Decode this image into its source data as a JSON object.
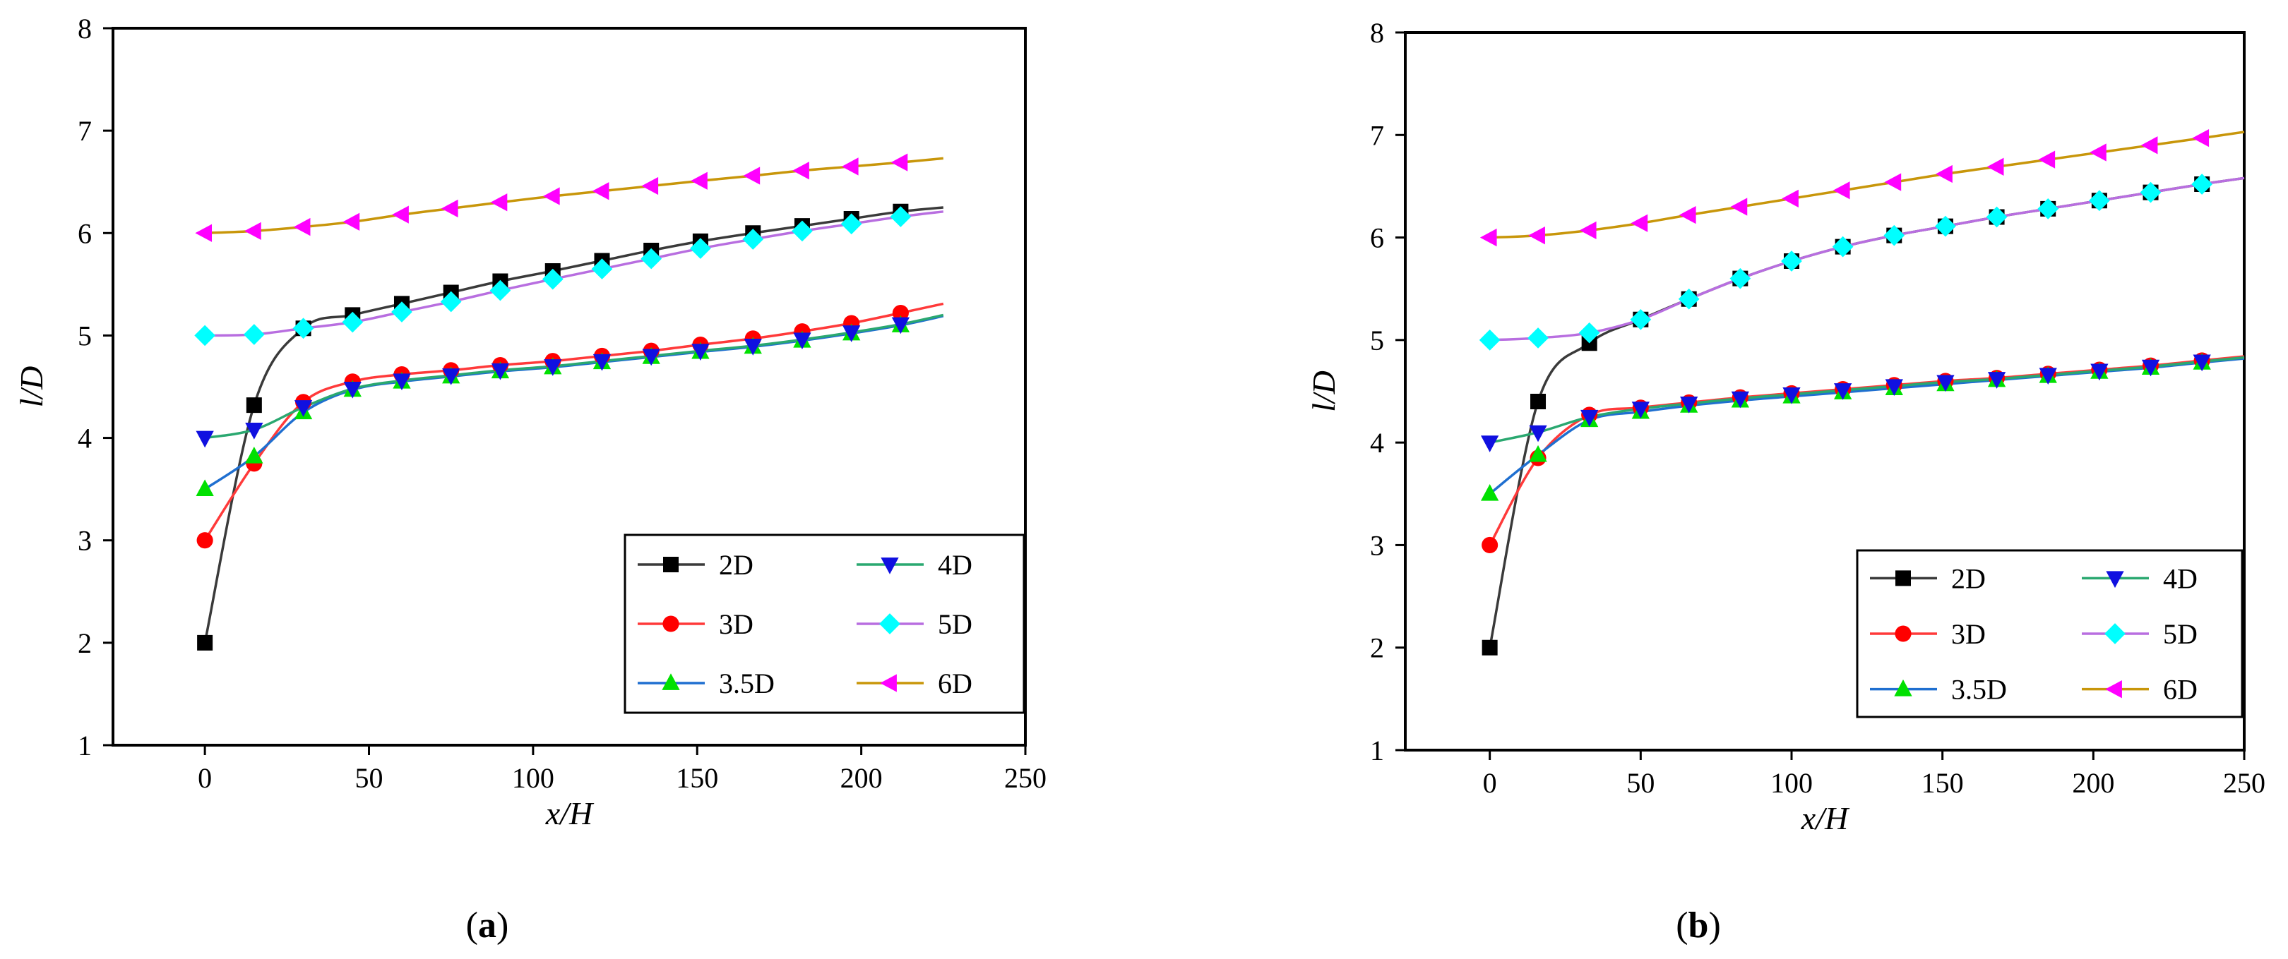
{
  "chart_data": [
    {
      "type": "line",
      "panel_label": "a",
      "xlabel": "x/H",
      "ylabel": "l/D",
      "xlim": [
        -28,
        250
      ],
      "ylim": [
        1,
        8
      ],
      "xticks": [
        0,
        50,
        100,
        150,
        200,
        250
      ],
      "yticks": [
        1,
        2,
        3,
        4,
        5,
        6,
        7,
        8
      ],
      "legend_position": "bottom-right",
      "series": [
        {
          "name": "2D",
          "color": "#000000",
          "line_color": "#3a3a3a",
          "marker": "square",
          "x": [
            0,
            15,
            30,
            45,
            60,
            75,
            90,
            106,
            121,
            136,
            151,
            167,
            182,
            197,
            212
          ],
          "y": [
            2.0,
            4.32,
            5.07,
            5.2,
            5.31,
            5.42,
            5.53,
            5.63,
            5.73,
            5.83,
            5.92,
            6.0,
            6.07,
            6.14,
            6.21
          ],
          "end": [
            225,
            6.25
          ]
        },
        {
          "name": "3D",
          "color": "#ff0000",
          "line_color": "#ff3a3a",
          "marker": "circle",
          "x": [
            0,
            15,
            30,
            45,
            60,
            75,
            90,
            106,
            121,
            136,
            151,
            167,
            182,
            197,
            212
          ],
          "y": [
            3.0,
            3.75,
            4.35,
            4.55,
            4.62,
            4.66,
            4.71,
            4.75,
            4.8,
            4.85,
            4.91,
            4.97,
            5.04,
            5.12,
            5.22
          ],
          "end": [
            225,
            5.31
          ]
        },
        {
          "name": "3.5D",
          "color": "#00e000",
          "line_color": "#1f6fd0",
          "marker": "triangle-up",
          "x": [
            0,
            15,
            30,
            45,
            60,
            75,
            90,
            106,
            121,
            136,
            151,
            167,
            182,
            197,
            212
          ],
          "y": [
            3.5,
            3.82,
            4.25,
            4.47,
            4.55,
            4.6,
            4.65,
            4.69,
            4.74,
            4.79,
            4.84,
            4.89,
            4.95,
            5.02,
            5.1
          ],
          "end": [
            225,
            5.19
          ]
        },
        {
          "name": "4D",
          "color": "#1010e0",
          "line_color": "#2aa870",
          "marker": "triangle-down",
          "x": [
            0,
            15,
            30,
            45,
            60,
            75,
            90,
            106,
            121,
            136,
            151,
            167,
            182,
            197,
            212
          ],
          "y": [
            4.0,
            4.08,
            4.3,
            4.48,
            4.56,
            4.61,
            4.66,
            4.7,
            4.75,
            4.8,
            4.85,
            4.9,
            4.96,
            5.03,
            5.11
          ],
          "end": [
            225,
            5.2
          ]
        },
        {
          "name": "5D",
          "color": "#00ffff",
          "line_color": "#b86ee0",
          "marker": "diamond",
          "x": [
            0,
            15,
            30,
            45,
            60,
            75,
            90,
            106,
            121,
            136,
            151,
            167,
            182,
            197,
            212
          ],
          "y": [
            5.0,
            5.01,
            5.07,
            5.13,
            5.23,
            5.33,
            5.44,
            5.55,
            5.65,
            5.75,
            5.85,
            5.94,
            6.02,
            6.09,
            6.16
          ],
          "end": [
            225,
            6.21
          ]
        },
        {
          "name": "6D",
          "color": "#ff00ff",
          "line_color": "#c8960a",
          "marker": "triangle-left",
          "x": [
            0,
            15,
            30,
            45,
            60,
            75,
            90,
            106,
            121,
            136,
            151,
            167,
            182,
            197,
            212
          ],
          "y": [
            6.0,
            6.02,
            6.06,
            6.11,
            6.18,
            6.24,
            6.3,
            6.36,
            6.41,
            6.46,
            6.51,
            6.56,
            6.61,
            6.65,
            6.69
          ],
          "end": [
            225,
            6.73
          ]
        }
      ]
    },
    {
      "type": "line",
      "panel_label": "b",
      "xlabel": "x/H",
      "ylabel": "l/D",
      "xlim": [
        -28,
        250
      ],
      "ylim": [
        1,
        8
      ],
      "xticks": [
        0,
        50,
        100,
        150,
        200,
        250
      ],
      "yticks": [
        1,
        2,
        3,
        4,
        5,
        6,
        7,
        8
      ],
      "legend_position": "bottom-right",
      "series": [
        {
          "name": "2D",
          "color": "#000000",
          "line_color": "#3a3a3a",
          "marker": "square",
          "x": [
            0,
            16,
            33,
            50,
            66,
            83,
            100,
            117,
            134,
            151,
            168,
            185,
            202,
            219,
            236
          ],
          "y": [
            2.0,
            4.4,
            4.97,
            5.2,
            5.4,
            5.6,
            5.77,
            5.91,
            6.02,
            6.11,
            6.2,
            6.28,
            6.36,
            6.44,
            6.52
          ],
          "end": [
            250,
            6.58
          ]
        },
        {
          "name": "3D",
          "color": "#ff0000",
          "line_color": "#ff3a3a",
          "marker": "circle",
          "x": [
            0,
            16,
            33,
            50,
            66,
            83,
            100,
            117,
            134,
            151,
            168,
            185,
            202,
            219,
            236
          ],
          "y": [
            3.0,
            3.85,
            4.27,
            4.34,
            4.39,
            4.44,
            4.48,
            4.52,
            4.56,
            4.6,
            4.63,
            4.67,
            4.71,
            4.75,
            4.8
          ],
          "end": [
            250,
            4.84
          ]
        },
        {
          "name": "3.5D",
          "color": "#00e000",
          "line_color": "#1f6fd0",
          "marker": "triangle-up",
          "x": [
            0,
            16,
            33,
            50,
            66,
            83,
            100,
            117,
            134,
            151,
            168,
            185,
            202,
            219,
            236
          ],
          "y": [
            3.5,
            3.88,
            4.22,
            4.3,
            4.36,
            4.41,
            4.45,
            4.49,
            4.53,
            4.57,
            4.61,
            4.65,
            4.69,
            4.73,
            4.78
          ],
          "end": [
            250,
            4.82
          ]
        },
        {
          "name": "4D",
          "color": "#1010e0",
          "line_color": "#2aa870",
          "marker": "triangle-down",
          "x": [
            0,
            16,
            33,
            50,
            66,
            83,
            100,
            117,
            134,
            151,
            168,
            185,
            202,
            219,
            236
          ],
          "y": [
            4.0,
            4.1,
            4.25,
            4.33,
            4.38,
            4.43,
            4.47,
            4.51,
            4.55,
            4.59,
            4.62,
            4.66,
            4.7,
            4.74,
            4.79
          ],
          "end": [
            250,
            4.83
          ]
        },
        {
          "name": "5D",
          "color": "#00ffff",
          "line_color": "#b86ee0",
          "marker": "diamond",
          "x": [
            0,
            16,
            33,
            50,
            66,
            83,
            100,
            117,
            134,
            151,
            168,
            185,
            202,
            219,
            236
          ],
          "y": [
            5.0,
            5.02,
            5.07,
            5.2,
            5.4,
            5.6,
            5.77,
            5.91,
            6.02,
            6.11,
            6.2,
            6.28,
            6.36,
            6.44,
            6.52
          ],
          "end": [
            250,
            6.58
          ]
        },
        {
          "name": "6D",
          "color": "#ff00ff",
          "line_color": "#c8960a",
          "marker": "triangle-left",
          "x": [
            0,
            16,
            33,
            50,
            66,
            83,
            100,
            117,
            134,
            151,
            168,
            185,
            202,
            219,
            236
          ],
          "y": [
            6.0,
            6.02,
            6.07,
            6.14,
            6.22,
            6.3,
            6.38,
            6.46,
            6.54,
            6.62,
            6.69,
            6.76,
            6.83,
            6.9,
            6.97
          ],
          "end": [
            250,
            7.03
          ]
        }
      ]
    }
  ]
}
